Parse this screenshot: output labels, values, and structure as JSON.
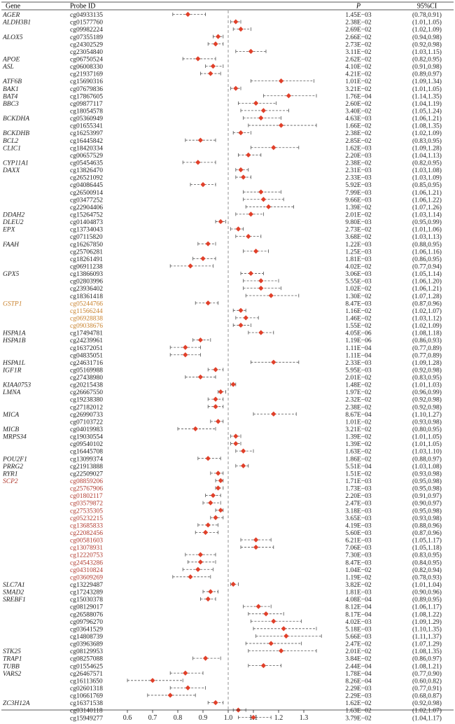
{
  "chart_data": {
    "type": "forest",
    "headers": {
      "gene": "Gene",
      "probe": "Probe ID",
      "p": "P",
      "ci": "95%CI"
    },
    "xaxis": {
      "min": 0.5,
      "max": 1.4,
      "reference": 1.0,
      "ticks": [
        0.6,
        0.7,
        0.8,
        0.9,
        1.0,
        1.1,
        1.2,
        1.3
      ],
      "tick_labels": [
        "0.6",
        "0.7",
        "0.8",
        "0.9",
        "1.0",
        "1.1",
        "1.2",
        "1.3"
      ]
    },
    "colors": {
      "text": "#222222",
      "highlight_orange": "#c8812c",
      "highlight_red": "#b03a2e",
      "marker": "#e0402a",
      "whisker": "#555555",
      "reference_line": "#888888"
    },
    "rows": [
      {
        "gene": "AGER",
        "probe": "cg04933135",
        "p": "1.45E−03",
        "ci": "(0.78,0.91)",
        "or": 0.84,
        "lo": 0.78,
        "hi": 0.91
      },
      {
        "gene": "ALDH3B1",
        "probe": "cg01577760",
        "p": "2.38E−02",
        "ci": "(1.01,1.05)",
        "or": 1.03,
        "lo": 1.01,
        "hi": 1.05
      },
      {
        "gene": "",
        "probe": "cg09982224",
        "p": "2.69E−02",
        "ci": "(1.02,1.09)",
        "or": 1.05,
        "lo": 1.02,
        "hi": 1.09
      },
      {
        "gene": "ALOX5",
        "probe": "cg07355189",
        "p": "2.66E−02",
        "ci": "(0.94,0.98)",
        "or": 0.96,
        "lo": 0.94,
        "hi": 0.98
      },
      {
        "gene": "",
        "probe": "cg24302529",
        "p": "2.73E−02",
        "ci": "(0.92,0.98)",
        "or": 0.95,
        "lo": 0.92,
        "hi": 0.98
      },
      {
        "gene": "",
        "probe": "cg23054840",
        "p": "3.11E−02",
        "ci": "(1.03,1.15)",
        "or": 1.09,
        "lo": 1.03,
        "hi": 1.15
      },
      {
        "gene": "APOE",
        "probe": "cg06750524",
        "p": "2.62E−02",
        "ci": "(0.82,0.95)",
        "or": 0.88,
        "lo": 0.82,
        "hi": 0.95
      },
      {
        "gene": "ASL",
        "probe": "cg06008330",
        "p": "4.10E−02",
        "ci": "(0.91,0.98)",
        "or": 0.94,
        "lo": 0.91,
        "hi": 0.98
      },
      {
        "gene": "",
        "probe": "cg21937169",
        "p": "4.21E−02",
        "ci": "(0.89,0.97)",
        "or": 0.93,
        "lo": 0.89,
        "hi": 0.97
      },
      {
        "gene": "ATF6B",
        "probe": "cg15690316",
        "p": "1.01E−02",
        "ci": "(1.09,1.34)",
        "or": 1.21,
        "lo": 1.09,
        "hi": 1.34
      },
      {
        "gene": "BAK1",
        "probe": "cg07679836",
        "p": "3.21E−02",
        "ci": "(1.01,1.05)",
        "or": 1.03,
        "lo": 1.01,
        "hi": 1.05
      },
      {
        "gene": "BAT4",
        "probe": "cg17867605",
        "p": "1.76E−04",
        "ci": "(1.14,1.35)",
        "or": 1.24,
        "lo": 1.14,
        "hi": 1.35
      },
      {
        "gene": "BBC3",
        "probe": "cg09877117",
        "p": "2.60E−02",
        "ci": "(1.04,1.19)",
        "or": 1.11,
        "lo": 1.04,
        "hi": 1.19
      },
      {
        "gene": "",
        "probe": "cg18054578",
        "p": "3.40E−02",
        "ci": "(1.05,1.24)",
        "or": 1.14,
        "lo": 1.05,
        "hi": 1.24
      },
      {
        "gene": "BCKDHA",
        "probe": "cg05360949",
        "p": "4.63E−03",
        "ci": "(1.06,1.21)",
        "or": 1.13,
        "lo": 1.06,
        "hi": 1.21
      },
      {
        "gene": "",
        "probe": "cg01655341",
        "p": "1.66E−02",
        "ci": "(1.08,1.35)",
        "or": 1.21,
        "lo": 1.08,
        "hi": 1.35
      },
      {
        "gene": "BCKDHB",
        "probe": "cg16253997",
        "p": "2.38E−02",
        "ci": "(1.02,1.09)",
        "or": 1.05,
        "lo": 1.02,
        "hi": 1.09
      },
      {
        "gene": "BCL2",
        "probe": "cg16445842",
        "p": "2.85E−02",
        "ci": "(0.83,0.95)",
        "or": 0.89,
        "lo": 0.83,
        "hi": 0.95
      },
      {
        "gene": "CLIC1",
        "probe": "cg18420334",
        "p": "1.62E−03",
        "ci": "(1.09,1.28)",
        "or": 1.18,
        "lo": 1.09,
        "hi": 1.28
      },
      {
        "gene": "",
        "probe": "cg00657529",
        "p": "2.20E−03",
        "ci": "(1.04,1.13)",
        "or": 1.08,
        "lo": 1.04,
        "hi": 1.13
      },
      {
        "gene": "CYP11A1",
        "probe": "cg05454635",
        "p": "2.38E−02",
        "ci": "(0.82,0.95)",
        "or": 0.88,
        "lo": 0.82,
        "hi": 0.95
      },
      {
        "gene": "DAXX",
        "probe": "cg13826470",
        "p": "2.31E−03",
        "ci": "(1.03,1.08)",
        "or": 1.05,
        "lo": 1.03,
        "hi": 1.08
      },
      {
        "gene": "",
        "probe": "cg26521092",
        "p": "2.33E−03",
        "ci": "(1.03,1.09)",
        "or": 1.06,
        "lo": 1.03,
        "hi": 1.09
      },
      {
        "gene": "",
        "probe": "cg04086445",
        "p": "5.92E−03",
        "ci": "(0.85,0.95)",
        "or": 0.9,
        "lo": 0.85,
        "hi": 0.95
      },
      {
        "gene": "",
        "probe": "cg26500914",
        "p": "7.99E−03",
        "ci": "(1.06,1.21)",
        "or": 1.13,
        "lo": 1.06,
        "hi": 1.21
      },
      {
        "gene": "",
        "probe": "cg03477252",
        "p": "9.66E−03",
        "ci": "(1.06,1.22)",
        "or": 1.14,
        "lo": 1.06,
        "hi": 1.22
      },
      {
        "gene": "",
        "probe": "cg22904406",
        "p": "1.39E−02",
        "ci": "(1.07,1.26)",
        "or": 1.16,
        "lo": 1.07,
        "hi": 1.26
      },
      {
        "gene": "DDAH2",
        "probe": "cg15264752",
        "p": "2.01E−02",
        "ci": "(1.03,1.14)",
        "or": 1.09,
        "lo": 1.03,
        "hi": 1.14
      },
      {
        "gene": "DLEU2",
        "probe": "cg01404873",
        "p": "9.80E−03",
        "ci": "(0.95,0.99)",
        "or": 0.97,
        "lo": 0.95,
        "hi": 0.99
      },
      {
        "gene": "EPX",
        "probe": "cg13734043",
        "p": "2.73E−02",
        "ci": "(1.01,1.06)",
        "or": 1.04,
        "lo": 1.01,
        "hi": 1.06
      },
      {
        "gene": "",
        "probe": "cg07115820",
        "p": "3.68E−02",
        "ci": "(1.03,1.13)",
        "or": 1.08,
        "lo": 1.03,
        "hi": 1.13
      },
      {
        "gene": "FAAH",
        "probe": "cg16267850",
        "p": "1.22E−03",
        "ci": "(0.88,0.95)",
        "or": 0.92,
        "lo": 0.88,
        "hi": 0.95
      },
      {
        "gene": "",
        "probe": "cg25706281",
        "p": "1.25E−03",
        "ci": "(1.06,1.16)",
        "or": 1.11,
        "lo": 1.06,
        "hi": 1.16
      },
      {
        "gene": "",
        "probe": "cg18261491",
        "p": "1.81E−03",
        "ci": "(0.86,0.95)",
        "or": 0.9,
        "lo": 0.86,
        "hi": 0.95
      },
      {
        "gene": "",
        "probe": "cg06911238",
        "p": "4.02E−02",
        "ci": "(0.77,0.94)",
        "or": 0.85,
        "lo": 0.77,
        "hi": 0.94
      },
      {
        "gene": "GPX5",
        "probe": "cg13866093",
        "p": "3.06E−03",
        "ci": "(1.05,1.14)",
        "or": 1.09,
        "lo": 1.05,
        "hi": 1.14
      },
      {
        "gene": "",
        "probe": "cg02803996",
        "p": "5.55E−03",
        "ci": "(1.06,1.20)",
        "or": 1.13,
        "lo": 1.06,
        "hi": 1.2
      },
      {
        "gene": "",
        "probe": "cg23936402",
        "p": "1.02E−02",
        "ci": "(1.06,1.21)",
        "or": 1.13,
        "lo": 1.06,
        "hi": 1.21
      },
      {
        "gene": "",
        "probe": "cg18361418",
        "p": "1.30E−02",
        "ci": "(1.07,1.28)",
        "or": 1.17,
        "lo": 1.07,
        "hi": 1.28
      },
      {
        "gene": "GSTP1",
        "probe": "cg05244766",
        "p": "8.47E−03",
        "ci": "(0.87,0.96)",
        "or": 0.92,
        "lo": 0.87,
        "hi": 0.96,
        "color": "orange"
      },
      {
        "gene": "",
        "probe": "cg11566244",
        "p": "1.16E−02",
        "ci": "(1.02,1.07)",
        "or": 1.05,
        "lo": 1.02,
        "hi": 1.07,
        "color": "orange"
      },
      {
        "gene": "",
        "probe": "cg06928838",
        "p": "1.46E−02",
        "ci": "(1.03,1.12)",
        "or": 1.07,
        "lo": 1.03,
        "hi": 1.12,
        "color": "orange"
      },
      {
        "gene": "",
        "probe": "cg09038676",
        "p": "1.55E−02",
        "ci": "(1.02,1.09)",
        "or": 1.05,
        "lo": 1.02,
        "hi": 1.09,
        "color": "orange"
      },
      {
        "gene": "HSPA1A",
        "probe": "cg17494781",
        "p": "4.05E−06",
        "ci": "(1.08,1.18)",
        "or": 1.13,
        "lo": 1.08,
        "hi": 1.18
      },
      {
        "gene": "HSPA1B",
        "probe": "cg24239961",
        "p": "1.19E−06",
        "ci": "(0.86,0.93)",
        "or": 0.89,
        "lo": 0.86,
        "hi": 0.93
      },
      {
        "gene": "",
        "probe": "cg16372051",
        "p": "1.11E−04",
        "ci": "(0.77,0.89)",
        "or": 0.83,
        "lo": 0.77,
        "hi": 0.89
      },
      {
        "gene": "",
        "probe": "cg04835051",
        "p": "1.11E−04",
        "ci": "(0.77,0.89)",
        "or": 0.83,
        "lo": 0.77,
        "hi": 0.89
      },
      {
        "gene": "HSPA1L",
        "probe": "cg24631716",
        "p": "2.33E−03",
        "ci": "(1.09,1.28)",
        "or": 1.18,
        "lo": 1.09,
        "hi": 1.28
      },
      {
        "gene": "IGF1R",
        "probe": "cg05169988",
        "p": "5.95E−03",
        "ci": "(0.92,0.98)",
        "or": 0.95,
        "lo": 0.92,
        "hi": 0.98
      },
      {
        "gene": "",
        "probe": "cg27438980",
        "p": "2.01E−02",
        "ci": "(0.83,0.95)",
        "or": 0.89,
        "lo": 0.83,
        "hi": 0.95
      },
      {
        "gene": "KIAA0753",
        "probe": "cg20215438",
        "p": "1.48E−02",
        "ci": "(1.01,1.03)",
        "or": 1.02,
        "lo": 1.01,
        "hi": 1.03
      },
      {
        "gene": "LMNA",
        "probe": "cg26667550",
        "p": "1.97E−02",
        "ci": "(0.96,0.99)",
        "or": 0.97,
        "lo": 0.96,
        "hi": 0.99
      },
      {
        "gene": "",
        "probe": "cg19238380",
        "p": "2.32E−02",
        "ci": "(0.92,0.98)",
        "or": 0.95,
        "lo": 0.92,
        "hi": 0.98
      },
      {
        "gene": "",
        "probe": "cg27182012",
        "p": "2.38E−02",
        "ci": "(0.92,0.98)",
        "or": 0.95,
        "lo": 0.92,
        "hi": 0.98
      },
      {
        "gene": "MICA",
        "probe": "cg26990733",
        "p": "8.67E−04",
        "ci": "(1.10,1.27)",
        "or": 1.18,
        "lo": 1.1,
        "hi": 1.27
      },
      {
        "gene": "",
        "probe": "cg07103722",
        "p": "1.01E−02",
        "ci": "(0.93,0.98)",
        "or": 0.96,
        "lo": 0.93,
        "hi": 0.98
      },
      {
        "gene": "MICB",
        "probe": "cg04019983",
        "p": "3.21E−02",
        "ci": "(0.80,0.95)",
        "or": 0.87,
        "lo": 0.8,
        "hi": 0.95
      },
      {
        "gene": "MRPS34",
        "probe": "cg19030554",
        "p": "1.39E−02",
        "ci": "(1.01,1.05)",
        "or": 1.03,
        "lo": 1.01,
        "hi": 1.05
      },
      {
        "gene": "",
        "probe": "cg09540102",
        "p": "1.39E−02",
        "ci": "(1.01,1.05)",
        "or": 1.03,
        "lo": 1.01,
        "hi": 1.05
      },
      {
        "gene": "",
        "probe": "cg16445708",
        "p": "1.63E−02",
        "ci": "(1.03,1.10)",
        "or": 1.06,
        "lo": 1.03,
        "hi": 1.1
      },
      {
        "gene": "POU2F1",
        "probe": "cg13099374",
        "p": "1.86E−02",
        "ci": "(0.88,0.97)",
        "or": 0.92,
        "lo": 0.88,
        "hi": 0.97
      },
      {
        "gene": "PRRG2",
        "probe": "cg21913888",
        "p": "5.51E−04",
        "ci": "(1.03,1.08)",
        "or": 1.06,
        "lo": 1.03,
        "hi": 1.08
      },
      {
        "gene": "RYR1",
        "probe": "cg22509027",
        "p": "1.51E−02",
        "ci": "(0.93,0.98)",
        "or": 0.96,
        "lo": 0.93,
        "hi": 0.98
      },
      {
        "gene": "SCP2",
        "probe": "cg08859206",
        "p": "1.71E−03",
        "ci": "(0.95,0.98)",
        "or": 0.97,
        "lo": 0.95,
        "hi": 0.98,
        "color": "red"
      },
      {
        "gene": "",
        "probe": "cg25767906",
        "p": "1.73E−03",
        "ci": "(0.95,0.98)",
        "or": 0.96,
        "lo": 0.95,
        "hi": 0.98,
        "color": "red"
      },
      {
        "gene": "",
        "probe": "cg01802117",
        "p": "2.20E−03",
        "ci": "(0.91,0.97)",
        "or": 0.94,
        "lo": 0.91,
        "hi": 0.97,
        "color": "red"
      },
      {
        "gene": "",
        "probe": "cg03579872",
        "p": "2.47E−03",
        "ci": "(0.90,0.97)",
        "or": 0.93,
        "lo": 0.9,
        "hi": 0.97,
        "color": "red"
      },
      {
        "gene": "",
        "probe": "cg27535305",
        "p": "3.18E−03",
        "ci": "(0.95,0.98)",
        "or": 0.97,
        "lo": 0.95,
        "hi": 0.98,
        "color": "red"
      },
      {
        "gene": "",
        "probe": "cg05232215",
        "p": "3.65E−03",
        "ci": "(0.93,0.98)",
        "or": 0.95,
        "lo": 0.93,
        "hi": 0.98,
        "color": "red"
      },
      {
        "gene": "",
        "probe": "cg13685833",
        "p": "4.19E−03",
        "ci": "(0.88,0.96)",
        "or": 0.92,
        "lo": 0.88,
        "hi": 0.96,
        "color": "red"
      },
      {
        "gene": "",
        "probe": "cg22082456",
        "p": "5.60E−03",
        "ci": "(0.87,0.96)",
        "or": 0.91,
        "lo": 0.87,
        "hi": 0.96,
        "color": "red"
      },
      {
        "gene": "",
        "probe": "cg00581603",
        "p": "6.21E−03",
        "ci": "(1.05,1.17)",
        "or": 1.11,
        "lo": 1.05,
        "hi": 1.17,
        "color": "red"
      },
      {
        "gene": "",
        "probe": "cg13078931",
        "p": "7.06E−03",
        "ci": "(1.05,1.18)",
        "or": 1.11,
        "lo": 1.05,
        "hi": 1.18,
        "color": "red"
      },
      {
        "gene": "",
        "probe": "cg12220753",
        "p": "7.30E−03",
        "ci": "(0.83,0.95)",
        "or": 0.89,
        "lo": 0.83,
        "hi": 0.95,
        "color": "red"
      },
      {
        "gene": "",
        "probe": "cg24543286",
        "p": "8.47E−03",
        "ci": "(0.84,0.95)",
        "or": 0.89,
        "lo": 0.84,
        "hi": 0.95,
        "color": "red"
      },
      {
        "gene": "",
        "probe": "cg04310824",
        "p": "1.04E−02",
        "ci": "(0.82,0.94)",
        "or": 0.88,
        "lo": 0.82,
        "hi": 0.94,
        "color": "red"
      },
      {
        "gene": "",
        "probe": "cg03609269",
        "p": "1.19E−02",
        "ci": "(0.78,0.93)",
        "or": 0.85,
        "lo": 0.78,
        "hi": 0.93,
        "color": "red"
      },
      {
        "gene": "SLC7A1",
        "probe": "cg13229487",
        "p": "3.82E−02",
        "ci": "(1.01,1.04)",
        "or": 1.02,
        "lo": 1.01,
        "hi": 1.04
      },
      {
        "gene": "SMAD2",
        "probe": "cg17243289",
        "p": "1.81E−03",
        "ci": "(0.90,0.96)",
        "or": 0.93,
        "lo": 0.9,
        "hi": 0.96
      },
      {
        "gene": "SREBF1",
        "probe": "cg15030378",
        "p": "4.08E−04",
        "ci": "(0.89,0.95)",
        "or": 0.92,
        "lo": 0.89,
        "hi": 0.95
      },
      {
        "gene": "",
        "probe": "cg08129017",
        "p": "8.12E−04",
        "ci": "(1.06,1.17)",
        "or": 1.12,
        "lo": 1.06,
        "hi": 1.17
      },
      {
        "gene": "",
        "probe": "cg26588076",
        "p": "8.17E−04",
        "ci": "(1.08,1.22)",
        "or": 1.15,
        "lo": 1.08,
        "hi": 1.22
      },
      {
        "gene": "",
        "probe": "cg09796270",
        "p": "4.02E−03",
        "ci": "(1.09,1.29)",
        "or": 1.18,
        "lo": 1.09,
        "hi": 1.29
      },
      {
        "gene": "",
        "probe": "cg03641529",
        "p": "5.18E−03",
        "ci": "(1.10,1.35)",
        "or": 1.22,
        "lo": 1.1,
        "hi": 1.35
      },
      {
        "gene": "",
        "probe": "cg14808739",
        "p": "5.66E−03",
        "ci": "(1.11,1.37)",
        "or": 1.23,
        "lo": 1.11,
        "hi": 1.37
      },
      {
        "gene": "",
        "probe": "cg03963689",
        "p": "2.47E−02",
        "ci": "(1.07,1.29)",
        "or": 1.17,
        "lo": 1.07,
        "hi": 1.29
      },
      {
        "gene": "STK25",
        "probe": "cg08129953",
        "p": "2.01E−02",
        "ci": "(1.08,1.35)",
        "or": 1.21,
        "lo": 1.08,
        "hi": 1.35
      },
      {
        "gene": "TRAP1",
        "probe": "cg08257088",
        "p": "3.84E−02",
        "ci": "(0.86,0.97)",
        "or": 0.91,
        "lo": 0.86,
        "hi": 0.97
      },
      {
        "gene": "TUBB",
        "probe": "cg01554625",
        "p": "2.44E−04",
        "ci": "(1.08,1.21)",
        "or": 1.14,
        "lo": 1.08,
        "hi": 1.21
      },
      {
        "gene": "VARS2",
        "probe": "cg26467571",
        "p": "1.78E−04",
        "ci": "(0.77,0.90)",
        "or": 0.83,
        "lo": 0.77,
        "hi": 0.9
      },
      {
        "gene": "",
        "probe": "cg16113650",
        "p": "8.26E−04",
        "ci": "(0.60,0.82)",
        "or": 0.7,
        "lo": 0.6,
        "hi": 0.82
      },
      {
        "gene": "",
        "probe": "cg02601318",
        "p": "2.29E−03",
        "ci": "(0.77,0.91)",
        "or": 0.84,
        "lo": 0.77,
        "hi": 0.91
      },
      {
        "gene": "",
        "probe": "cg10661769",
        "p": "2.29E−03",
        "ci": "(0.68,0.87)",
        "or": 0.77,
        "lo": 0.68,
        "hi": 0.87
      },
      {
        "gene": "ZC3H12A",
        "probe": "cg16371538",
        "p": "1.62E−02",
        "ci": "(0.92,0.98)",
        "or": 0.95,
        "lo": 0.92,
        "hi": 0.98
      },
      {
        "gene": "",
        "probe": "cg03140118",
        "p": "1.63E−02",
        "ci": "(1.02,1.07)",
        "or": 1.04,
        "lo": 1.02,
        "hi": 1.07
      },
      {
        "gene": "",
        "probe": "cg15949277",
        "p": "3.79E−02",
        "ci": "(1.04,1.17)",
        "or": 1.1,
        "lo": 1.04,
        "hi": 1.17
      }
    ]
  }
}
